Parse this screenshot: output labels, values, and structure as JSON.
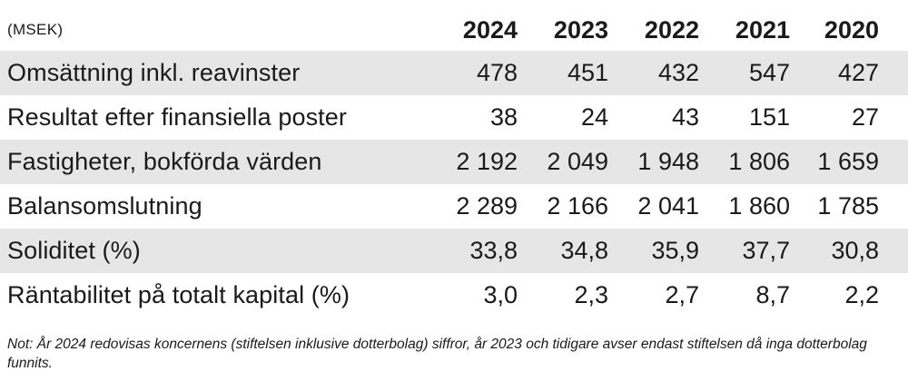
{
  "table": {
    "unit_label": "(MSEK)",
    "columns": [
      "2024",
      "2023",
      "2022",
      "2021",
      "2020"
    ],
    "rows": [
      {
        "label": "Omsättning inkl. reavinster",
        "values": [
          "478",
          "451",
          "432",
          "547",
          "427"
        ]
      },
      {
        "label": "Resultat efter finansiella poster",
        "values": [
          "38",
          "24",
          "43",
          "151",
          "27"
        ]
      },
      {
        "label": "Fastigheter, bokförda värden",
        "values": [
          "2 192",
          "2 049",
          "1 948",
          "1 806",
          "1 659"
        ]
      },
      {
        "label": "Balansomslutning",
        "values": [
          "2 289",
          "2 166",
          "2 041",
          "1 860",
          "1 785"
        ]
      },
      {
        "label": "Soliditet (%)",
        "values": [
          "33,8",
          "34,8",
          "35,9",
          "37,7",
          "30,8"
        ]
      },
      {
        "label": "Räntabilitet på totalt kapital (%)",
        "values": [
          "3,0",
          "2,3",
          "2,7",
          "8,7",
          "2,2"
        ]
      }
    ]
  },
  "note": "Not: År 2024 redovisas koncernens (stiftelsen inklusive dotterbolag) siffror, år 2023 och tidigare avser endast stiftelsen då inga dotterbolag funnits.",
  "colors": {
    "row_shade": "#e6e6e6",
    "text": "#1a1a1a"
  }
}
